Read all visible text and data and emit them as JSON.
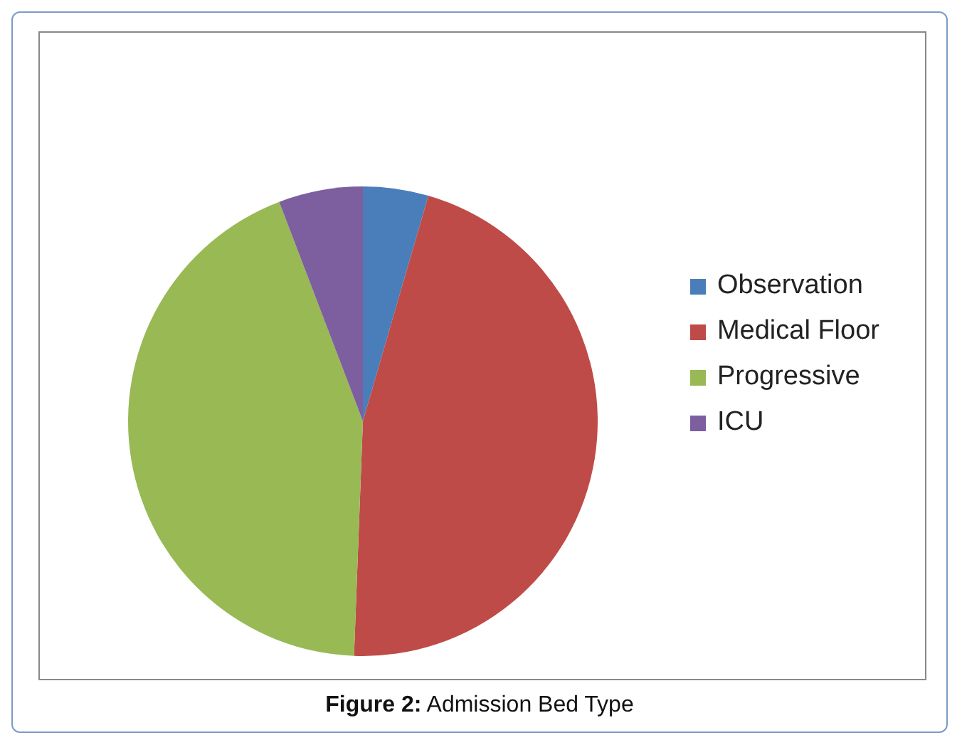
{
  "chart_data": {
    "type": "pie",
    "categories": [
      "Observation",
      "Medical Floor",
      "Progressive",
      "ICU"
    ],
    "values": [
      4.5,
      46.1,
      43.6,
      5.8
    ],
    "colors": [
      "#4a7ebb",
      "#be4b48",
      "#98b954",
      "#7d5fa0"
    ],
    "legend": "right",
    "annotations": [
      "Figure 2: Admission Bed Type"
    ]
  }
}
